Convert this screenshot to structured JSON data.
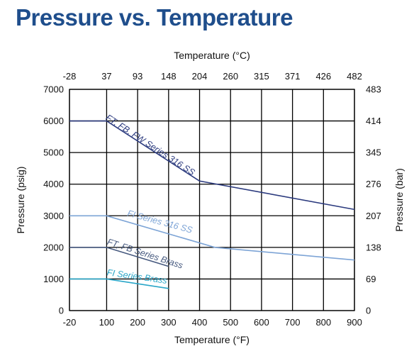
{
  "chart_data": {
    "type": "line",
    "title": "Pressure vs. Temperature",
    "xlabel": "Temperature (°F)",
    "x2label": "Temperature (°C)",
    "ylabel": "Pressure (psig)",
    "y2label": "Pressure (bar)",
    "xlim": [
      -20,
      900
    ],
    "ylim": [
      0,
      7000
    ],
    "grid": true,
    "x_ticks": [
      "-20",
      "100",
      "200",
      "300",
      "400",
      "500",
      "600",
      "700",
      "800",
      "900"
    ],
    "x_tick_values": [
      -20,
      100,
      200,
      300,
      400,
      500,
      600,
      700,
      800,
      900
    ],
    "x2_ticks": [
      "-28",
      "37",
      "93",
      "148",
      "204",
      "260",
      "315",
      "371",
      "426",
      "482"
    ],
    "y_ticks": [
      "0",
      "1000",
      "2000",
      "3000",
      "4000",
      "5000",
      "6000",
      "7000"
    ],
    "y_tick_values": [
      0,
      1000,
      2000,
      3000,
      4000,
      5000,
      6000,
      7000
    ],
    "y2_ticks": [
      "0",
      "69",
      "138",
      "207",
      "276",
      "345",
      "414",
      "483"
    ],
    "series": [
      {
        "name": "FT, FB, FW Series 316 SS",
        "color": "#2b3a7e",
        "x": [
          -20,
          100,
          400,
          900
        ],
        "y": [
          6000,
          6000,
          4100,
          3200
        ],
        "label_x": 95,
        "label_y": 6060,
        "label_angle": 33
      },
      {
        "name": "FI Series 316 SS",
        "color": "#7da4d6",
        "x": [
          -20,
          100,
          450,
          900
        ],
        "y": [
          3000,
          3000,
          2000,
          1600
        ],
        "label_x": 165,
        "label_y": 3000,
        "label_angle": 15
      },
      {
        "name": "FT, FB Series Brass",
        "color": "#45587e",
        "x": [
          -20,
          100,
          300
        ],
        "y": [
          2000,
          2000,
          1400
        ],
        "label_x": 100,
        "label_y": 2100,
        "label_angle": 18
      },
      {
        "name": "FI Series Brass",
        "color": "#2aa6c8",
        "x": [
          -20,
          100,
          300
        ],
        "y": [
          1000,
          1000,
          700
        ],
        "label_x": 100,
        "label_y": 1120,
        "label_angle": 8
      }
    ]
  }
}
